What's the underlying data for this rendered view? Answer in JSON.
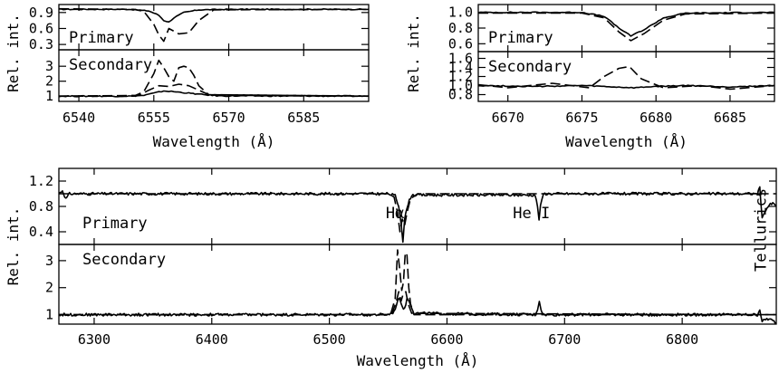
{
  "chart_data": [
    {
      "id": "ha",
      "type": "line",
      "xlabel": "Wavelength (Å)",
      "ylabel": "Rel. int.",
      "xlim": [
        6536,
        6598
      ],
      "xticks": [
        6540,
        6555,
        6570,
        6585
      ],
      "xtick_labels": [
        "6540",
        "6555",
        "6570",
        "6585"
      ],
      "panels": [
        {
          "id": "primary",
          "label": "Primary",
          "ylim": [
            0.2,
            1.05
          ],
          "yticks": [
            0.3,
            0.6,
            0.9
          ],
          "ytick_labels": [
            "0.3",
            "0.6",
            "0.9"
          ],
          "series": [
            {
              "style": "solid",
              "x": [
                6536,
                6550,
                6554,
                6556,
                6557,
                6558,
                6559,
                6561,
                6564,
                6570,
                6598
              ],
              "y": [
                0.96,
                0.96,
                0.93,
                0.85,
                0.75,
                0.72,
                0.8,
                0.9,
                0.95,
                0.96,
                0.96
              ]
            },
            {
              "style": "dashed",
              "x": [
                6536,
                6551,
                6553,
                6555,
                6556,
                6557,
                6558,
                6559,
                6560,
                6562,
                6564,
                6567,
                6598
              ],
              "y": [
                0.97,
                0.96,
                0.92,
                0.68,
                0.48,
                0.36,
                0.6,
                0.55,
                0.5,
                0.52,
                0.75,
                0.95,
                0.96
              ]
            }
          ]
        },
        {
          "id": "secondary",
          "label": "Secondary",
          "ylim": [
            0.65,
            4.1
          ],
          "yticks": [
            1,
            2,
            3
          ],
          "ytick_labels": [
            "1",
            "2",
            "3"
          ],
          "series": [
            {
              "style": "solid",
              "x": [
                6536,
                6550,
                6553,
                6555,
                6557,
                6559,
                6562,
                6565,
                6568,
                6598
              ],
              "y": [
                1.0,
                1.0,
                1.05,
                1.2,
                1.35,
                1.3,
                1.2,
                1.1,
                1.02,
                1.0
              ]
            },
            {
              "style": "dashed",
              "x": [
                6536,
                6551,
                6553,
                6555,
                6556,
                6557,
                6558,
                6559,
                6560,
                6561,
                6562,
                6563,
                6564,
                6566,
                6598
              ],
              "y": [
                1.0,
                1.0,
                1.3,
                2.5,
                3.4,
                2.9,
                2.3,
                2.0,
                2.9,
                3.0,
                2.9,
                2.4,
                1.7,
                1.1,
                1.0
              ]
            },
            {
              "style": "dashed",
              "x": [
                6536,
                6552,
                6554,
                6556,
                6558,
                6560,
                6562,
                6564,
                6566,
                6598
              ],
              "y": [
                1.0,
                1.05,
                1.4,
                1.7,
                1.65,
                1.8,
                1.7,
                1.4,
                1.1,
                1.0
              ]
            }
          ]
        }
      ]
    },
    {
      "id": "hei",
      "type": "line",
      "xlabel": "Wavelength (Å)",
      "ylabel": "Rel. int.",
      "xlim": [
        6668,
        6688
      ],
      "xticks": [
        6670,
        6675,
        6680,
        6685
      ],
      "xtick_labels": [
        "6670",
        "6675",
        "6680",
        "6685"
      ],
      "panels": [
        {
          "id": "primary",
          "label": "Primary",
          "ylim": [
            0.5,
            1.1
          ],
          "yticks": [
            0.6,
            0.8,
            1.0
          ],
          "ytick_labels": [
            "0.6",
            "0.8",
            "1.0"
          ],
          "series": [
            {
              "style": "solid",
              "x": [
                6668,
                6675,
                6676.5,
                6677.5,
                6678.3,
                6679.2,
                6680.5,
                6682,
                6688
              ],
              "y": [
                1.0,
                1.0,
                0.95,
                0.8,
                0.7,
                0.78,
                0.93,
                0.99,
                1.0
              ]
            },
            {
              "style": "dashed",
              "x": [
                6668,
                6675,
                6676.5,
                6677.5,
                6678.3,
                6679.2,
                6680.5,
                6682,
                6688
              ],
              "y": [
                0.99,
                0.99,
                0.93,
                0.75,
                0.64,
                0.73,
                0.9,
                0.98,
                0.99
              ]
            }
          ]
        },
        {
          "id": "secondary",
          "label": "Secondary",
          "ylim": [
            0.65,
            1.75
          ],
          "yticks": [
            0.8,
            1.0,
            1.2,
            1.4,
            1.6
          ],
          "ytick_labels": [
            "0.8",
            "1.0",
            "1.2",
            "1.4",
            "1.6"
          ],
          "series": [
            {
              "style": "solid",
              "x": [
                6668,
                6672,
                6675,
                6677,
                6678.5,
                6680,
                6682,
                6685,
                6688
              ],
              "y": [
                1.0,
                0.98,
                1.0,
                0.97,
                0.95,
                0.98,
                1.0,
                0.97,
                1.0
              ]
            },
            {
              "style": "dashed",
              "x": [
                6668,
                6670,
                6673,
                6675.5,
                6676.5,
                6677.5,
                6678.2,
                6679,
                6680.5,
                6683,
                6685,
                6688
              ],
              "y": [
                1.02,
                0.95,
                1.05,
                0.95,
                1.2,
                1.38,
                1.42,
                1.15,
                0.95,
                1.0,
                0.92,
                1.0
              ]
            }
          ]
        }
      ]
    },
    {
      "id": "full",
      "type": "line",
      "xlabel": "Wavelength (Å)",
      "ylabel": "Rel. int.",
      "xlim": [
        6270,
        6880
      ],
      "xticks": [
        6300,
        6400,
        6500,
        6600,
        6700,
        6800
      ],
      "xtick_labels": [
        "6300",
        "6400",
        "6500",
        "6600",
        "6700",
        "6800"
      ],
      "annotations": [
        {
          "text": "Hα",
          "x": 6562
        },
        {
          "text": "He I",
          "x": 6678
        },
        {
          "text": "Tellurics",
          "x": 6868
        }
      ],
      "panels": [
        {
          "id": "primary",
          "label": "Primary",
          "ylim": [
            0.2,
            1.4
          ],
          "yticks": [
            0.4,
            0.8,
            1.2
          ],
          "ytick_labels": [
            "0.4",
            "0.8",
            "1.2"
          ],
          "series": [
            {
              "style": "solid",
              "x": [
                6270,
                6273,
                6276,
                6279,
                6550,
                6556,
                6559,
                6561,
                6562.5,
                6564,
                6567,
                6570,
                6675,
                6677,
                6678.3,
                6679.5,
                6682,
                6864,
                6866,
                6868,
                6871,
                6874,
                6877,
                6880
              ],
              "y": [
                1.0,
                1.05,
                0.92,
                1.0,
                1.0,
                0.97,
                0.8,
                0.55,
                0.25,
                0.6,
                0.85,
                0.98,
                0.98,
                0.8,
                0.6,
                0.8,
                1.0,
                1.0,
                1.1,
                0.6,
                0.75,
                0.82,
                0.85,
                0.8
              ]
            },
            {
              "style": "dashed",
              "x": [
                6270,
                6550,
                6555,
                6558,
                6560,
                6562,
                6564,
                6566,
                6569,
                6575,
                6880
              ],
              "y": [
                1.0,
                1.0,
                0.95,
                0.7,
                0.4,
                0.6,
                0.5,
                0.7,
                0.92,
                1.0,
                1.0
              ]
            }
          ]
        },
        {
          "id": "secondary",
          "label": "Secondary",
          "ylim": [
            0.65,
            3.6
          ],
          "yticks": [
            1,
            2,
            3
          ],
          "ytick_labels": [
            "1",
            "2",
            "3"
          ],
          "series": [
            {
              "style": "solid",
              "x": [
                6270,
                6550,
                6555,
                6558,
                6560,
                6562,
                6564,
                6566,
                6568,
                6572,
                6675,
                6677,
                6678.5,
                6680,
                6682,
                6864,
                6866,
                6868,
                6872,
                6876,
                6880
              ],
              "y": [
                1.0,
                1.0,
                1.1,
                1.5,
                1.6,
                1.3,
                1.2,
                1.6,
                1.5,
                1.05,
                1.0,
                1.2,
                1.5,
                1.2,
                1.0,
                1.0,
                1.2,
                0.75,
                0.85,
                0.8,
                0.7
              ]
            },
            {
              "style": "dashed",
              "x": [
                6270,
                6552,
                6556,
                6558,
                6560,
                6561.5,
                6563,
                6564.5,
                6566,
                6567.5,
                6569,
                6572,
                6880
              ],
              "y": [
                1.0,
                1.0,
                1.6,
                3.4,
                2.6,
                1.9,
                2.2,
                3.3,
                3.2,
                2.0,
                1.4,
                1.0,
                1.0
              ]
            },
            {
              "style": "dashed",
              "x": [
                6270,
                6553,
                6557,
                6559,
                6561,
                6563,
                6565,
                6567,
                6570,
                6880
              ],
              "y": [
                1.0,
                1.0,
                1.5,
                1.85,
                1.5,
                1.8,
                1.85,
                1.4,
                1.05,
                1.0
              ]
            }
          ]
        }
      ]
    }
  ]
}
